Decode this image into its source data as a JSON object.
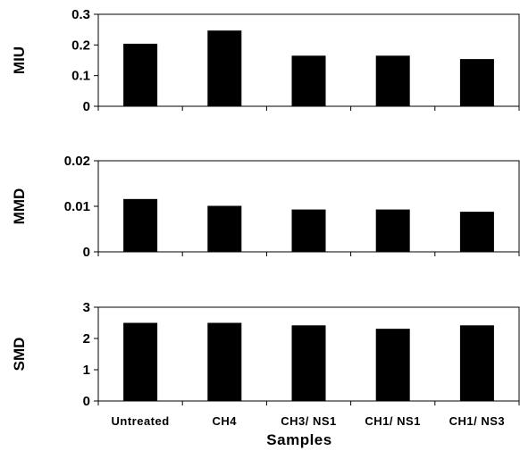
{
  "chart_data": [
    {
      "type": "bar",
      "ylabel": "MIU",
      "ylim": [
        0,
        0.3
      ],
      "yticks": [
        "0",
        "0.1",
        "0.2",
        "0.3"
      ],
      "categories": [
        "Untreated",
        "CH4",
        "CH3/ NS1",
        "CH1/ NS1",
        "CH1/ NS3"
      ],
      "values": [
        0.204,
        0.247,
        0.165,
        0.165,
        0.154
      ]
    },
    {
      "type": "bar",
      "ylabel": "MMD",
      "ylim": [
        0,
        0.02
      ],
      "yticks": [
        "0",
        "0.01",
        "0.02"
      ],
      "categories": [
        "Untreated",
        "CH4",
        "CH3/ NS1",
        "CH1/ NS1",
        "CH1/ NS3"
      ],
      "values": [
        0.0116,
        0.0101,
        0.0093,
        0.0093,
        0.0088
      ]
    },
    {
      "type": "bar",
      "ylabel": "SMD",
      "ylim": [
        0,
        3
      ],
      "yticks": [
        "0",
        "1",
        "2",
        "3"
      ],
      "categories": [
        "Untreated",
        "CH4",
        "CH3/ NS1",
        "CH1/ NS1",
        "CH1/ NS3"
      ],
      "values": [
        2.5,
        2.5,
        2.42,
        2.31,
        2.42
      ]
    }
  ],
  "xlabel": "Samples",
  "colors": {
    "bar": "#000000",
    "axis": "#000000",
    "background": "#ffffff"
  }
}
